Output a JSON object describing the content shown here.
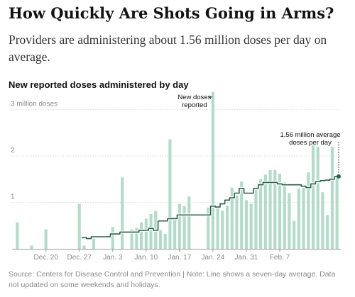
{
  "header": {
    "headline": "How Quickly Are Shots Going in Arms?",
    "dek": "Providers are administering about 1.56 million doses per day on average."
  },
  "footer": {
    "source": "Source: Centers for Disease Control and Prevention | Note: Line shows a seven-day average. Data not updated on some weekends and holidays."
  },
  "colors": {
    "bar": "#b4dbc9",
    "line": "#2b5f4f",
    "grid": "#d9d9d9",
    "axis": "#999999",
    "text_muted": "#8a8a8a"
  },
  "chart_data": {
    "type": "bar",
    "title": "New reported doses administered by day",
    "y_unit_label": "million doses",
    "ylim": [
      0,
      3.5
    ],
    "y_ticks": [
      {
        "value": 1,
        "label": "1"
      },
      {
        "value": 2,
        "label": "2"
      },
      {
        "value": 3,
        "label": "3 million doses"
      }
    ],
    "x_ticks": [
      {
        "date": "2020-12-20",
        "label": "Dec. 20"
      },
      {
        "date": "2020-12-27",
        "label": "Dec. 27"
      },
      {
        "date": "2021-01-03",
        "label": "Jan. 3"
      },
      {
        "date": "2021-01-10",
        "label": "Jan. 10"
      },
      {
        "date": "2021-01-17",
        "label": "Jan. 17"
      },
      {
        "date": "2021-01-24",
        "label": "Jan. 24"
      },
      {
        "date": "2021-01-31",
        "label": "Jan. 31"
      },
      {
        "date": "2021-02-07",
        "label": "Feb. 7"
      }
    ],
    "grid": true,
    "series": [
      {
        "name": "New doses reported",
        "kind": "bar",
        "points": [
          {
            "date": "2020-12-14",
            "value": 0.57
          },
          {
            "date": "2020-12-15",
            "value": 0
          },
          {
            "date": "2020-12-16",
            "value": 0
          },
          {
            "date": "2020-12-17",
            "value": 0.07
          },
          {
            "date": "2020-12-18",
            "value": 0
          },
          {
            "date": "2020-12-19",
            "value": 0
          },
          {
            "date": "2020-12-20",
            "value": 0.42
          },
          {
            "date": "2020-12-21",
            "value": 0
          },
          {
            "date": "2020-12-22",
            "value": 0
          },
          {
            "date": "2020-12-23",
            "value": 0
          },
          {
            "date": "2020-12-24",
            "value": 0
          },
          {
            "date": "2020-12-25",
            "value": 0
          },
          {
            "date": "2020-12-26",
            "value": 0
          },
          {
            "date": "2020-12-27",
            "value": 0.97
          },
          {
            "date": "2020-12-28",
            "value": 0.07
          },
          {
            "date": "2020-12-29",
            "value": 0
          },
          {
            "date": "2020-12-30",
            "value": 0.22
          },
          {
            "date": "2020-12-31",
            "value": 0
          },
          {
            "date": "2021-01-01",
            "value": 0
          },
          {
            "date": "2021-01-02",
            "value": 0
          },
          {
            "date": "2021-01-03",
            "value": 0.47
          },
          {
            "date": "2021-01-04",
            "value": 0
          },
          {
            "date": "2021-01-05",
            "value": 1.54
          },
          {
            "date": "2021-01-06",
            "value": 0
          },
          {
            "date": "2021-01-07",
            "value": 0.42
          },
          {
            "date": "2021-01-08",
            "value": 0.45
          },
          {
            "date": "2021-01-09",
            "value": 0.57
          },
          {
            "date": "2021-01-10",
            "value": 0.65
          },
          {
            "date": "2021-01-11",
            "value": 0.75
          },
          {
            "date": "2021-01-12",
            "value": 0.82
          },
          {
            "date": "2021-01-13",
            "value": 0.4
          },
          {
            "date": "2021-01-14",
            "value": 0.32
          },
          {
            "date": "2021-01-15",
            "value": 2.36
          },
          {
            "date": "2021-01-16",
            "value": 0.68
          },
          {
            "date": "2021-01-17",
            "value": 0.97
          },
          {
            "date": "2021-01-18",
            "value": 0.92
          },
          {
            "date": "2021-01-19",
            "value": 1.13
          },
          {
            "date": "2021-01-20",
            "value": 0
          },
          {
            "date": "2021-01-21",
            "value": 0
          },
          {
            "date": "2021-01-22",
            "value": 0
          },
          {
            "date": "2021-01-23",
            "value": 0.89
          },
          {
            "date": "2021-01-24",
            "value": 3.38
          },
          {
            "date": "2021-01-25",
            "value": 0.89
          },
          {
            "date": "2021-01-26",
            "value": 0.82
          },
          {
            "date": "2021-01-27",
            "value": 0.93
          },
          {
            "date": "2021-01-28",
            "value": 1.32
          },
          {
            "date": "2021-01-29",
            "value": 1.15
          },
          {
            "date": "2021-01-30",
            "value": 1.45
          },
          {
            "date": "2021-01-31",
            "value": 1.05
          },
          {
            "date": "2021-02-01",
            "value": 0.97
          },
          {
            "date": "2021-02-02",
            "value": 1.34
          },
          {
            "date": "2021-02-03",
            "value": 1.5
          },
          {
            "date": "2021-02-04",
            "value": 1.6
          },
          {
            "date": "2021-02-05",
            "value": 1.7
          },
          {
            "date": "2021-02-06",
            "value": 1.7
          },
          {
            "date": "2021-02-07",
            "value": 1.62
          },
          {
            "date": "2021-02-08",
            "value": 1.43
          },
          {
            "date": "2021-02-09",
            "value": 1.2
          },
          {
            "date": "2021-02-10",
            "value": 0.6
          },
          {
            "date": "2021-02-11",
            "value": 1.3
          },
          {
            "date": "2021-02-12",
            "value": 1.35
          },
          {
            "date": "2021-02-13",
            "value": 1.65
          },
          {
            "date": "2021-02-14",
            "value": 2.23
          },
          {
            "date": "2021-02-15",
            "value": 2.2
          },
          {
            "date": "2021-02-16",
            "value": 1.22
          },
          {
            "date": "2021-02-17",
            "value": 0.73
          },
          {
            "date": "2021-02-18",
            "value": 2.2
          },
          {
            "date": "2021-02-19",
            "value": 1.56
          }
        ]
      },
      {
        "name": "Seven-day average",
        "kind": "step-line",
        "points": [
          {
            "date": "2020-12-28",
            "value": 0.24
          },
          {
            "date": "2020-12-29",
            "value": 0.22
          },
          {
            "date": "2020-12-30",
            "value": 0.26
          },
          {
            "date": "2020-12-31",
            "value": 0.26
          },
          {
            "date": "2021-01-01",
            "value": 0.26
          },
          {
            "date": "2021-01-02",
            "value": 0.26
          },
          {
            "date": "2021-01-03",
            "value": 0.32
          },
          {
            "date": "2021-01-04",
            "value": 0.32
          },
          {
            "date": "2021-01-05",
            "value": 0.36
          },
          {
            "date": "2021-01-06",
            "value": 0.36
          },
          {
            "date": "2021-01-07",
            "value": 0.36
          },
          {
            "date": "2021-01-08",
            "value": 0.36
          },
          {
            "date": "2021-01-09",
            "value": 0.4
          },
          {
            "date": "2021-01-10",
            "value": 0.4
          },
          {
            "date": "2021-01-11",
            "value": 0.44
          },
          {
            "date": "2021-01-12",
            "value": 0.4
          },
          {
            "date": "2021-01-13",
            "value": 0.6
          },
          {
            "date": "2021-01-14",
            "value": 0.6
          },
          {
            "date": "2021-01-15",
            "value": 0.65
          },
          {
            "date": "2021-01-16",
            "value": 0.65
          },
          {
            "date": "2021-01-17",
            "value": 0.73
          },
          {
            "date": "2021-01-18",
            "value": 0.73
          },
          {
            "date": "2021-01-19",
            "value": 0.73
          },
          {
            "date": "2021-01-20",
            "value": 0.73
          },
          {
            "date": "2021-01-21",
            "value": 0.73
          },
          {
            "date": "2021-01-22",
            "value": 0.73
          },
          {
            "date": "2021-01-23",
            "value": 0.73
          },
          {
            "date": "2021-01-24",
            "value": 0.92
          },
          {
            "date": "2021-01-25",
            "value": 0.9
          },
          {
            "date": "2021-01-26",
            "value": 0.97
          },
          {
            "date": "2021-01-27",
            "value": 1.05
          },
          {
            "date": "2021-01-28",
            "value": 1.1
          },
          {
            "date": "2021-01-29",
            "value": 1.2
          },
          {
            "date": "2021-01-30",
            "value": 1.3
          },
          {
            "date": "2021-01-31",
            "value": 1.2
          },
          {
            "date": "2021-02-01",
            "value": 1.2
          },
          {
            "date": "2021-02-02",
            "value": 1.3
          },
          {
            "date": "2021-02-03",
            "value": 1.38
          },
          {
            "date": "2021-02-04",
            "value": 1.43
          },
          {
            "date": "2021-02-05",
            "value": 1.43
          },
          {
            "date": "2021-02-06",
            "value": 1.43
          },
          {
            "date": "2021-02-07",
            "value": 1.4
          },
          {
            "date": "2021-02-08",
            "value": 1.38
          },
          {
            "date": "2021-02-09",
            "value": 1.38
          },
          {
            "date": "2021-02-10",
            "value": 1.38
          },
          {
            "date": "2021-02-11",
            "value": 1.38
          },
          {
            "date": "2021-02-12",
            "value": 1.35
          },
          {
            "date": "2021-02-13",
            "value": 1.32
          },
          {
            "date": "2021-02-14",
            "value": 1.4
          },
          {
            "date": "2021-02-15",
            "value": 1.45
          },
          {
            "date": "2021-02-16",
            "value": 1.47
          },
          {
            "date": "2021-02-17",
            "value": 1.48
          },
          {
            "date": "2021-02-18",
            "value": 1.5
          },
          {
            "date": "2021-02-19",
            "value": 1.56
          }
        ]
      }
    ],
    "annotations": [
      {
        "text_lines": [
          "New doses",
          "reported"
        ],
        "date": "2021-01-24",
        "value": 3.38
      },
      {
        "text_lines": [
          "1.56 million average",
          "doses per day"
        ],
        "date": "2021-02-19",
        "value": 1.56
      }
    ]
  }
}
